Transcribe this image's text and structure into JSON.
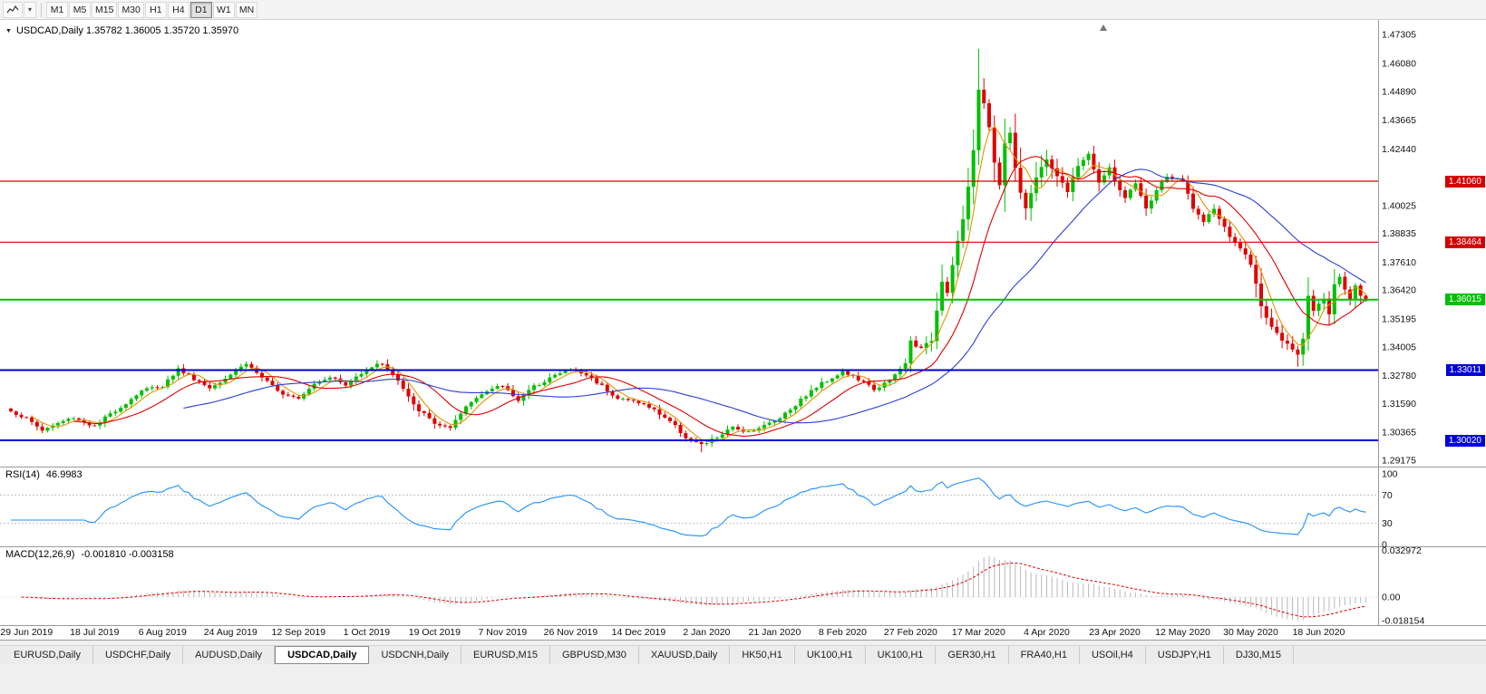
{
  "toolbar": {
    "timeframes": [
      "M1",
      "M5",
      "M15",
      "M30",
      "H1",
      "H4",
      "D1",
      "W1",
      "MN"
    ],
    "active_timeframe": "D1",
    "caret_glyph": "▾"
  },
  "chart": {
    "menu_arrow": "▼",
    "title_text": "USDCAD,Daily 1.35782 1.36005 1.35720 1.35970"
  },
  "rsi": {
    "title": "RSI(14)",
    "value": "46.9983"
  },
  "macd": {
    "title": "MACD(12,26,9)",
    "values": "-0.001810 -0.003158"
  },
  "tabs": {
    "items": [
      "EURUSD,Daily",
      "USDCHF,Daily",
      "AUDUSD,Daily",
      "USDCAD,Daily",
      "USDCNH,Daily",
      "EURUSD,M15",
      "GBPUSD,M30",
      "XAUUSD,Daily",
      "HK50,H1",
      "UK100,H1",
      "UK100,H1",
      "GER30,H1",
      "FRA40,H1",
      "USOil,H4",
      "USDJPY,H1",
      "DJ30,M15"
    ],
    "active_index": 3
  },
  "chart_data": {
    "type": "candlestick",
    "symbol": "USDCAD",
    "timeframe": "Daily",
    "last_bar": {
      "open": 1.35782,
      "high": 1.36005,
      "low": 1.3572,
      "close": 1.3597
    },
    "bar_count": 260,
    "price_range": [
      1.289,
      1.477
    ],
    "colors": {
      "up": "#00c000",
      "down": "#e00000"
    },
    "y_axis_labels": [
      1.47305,
      1.4608,
      1.4489,
      1.43665,
      1.4244,
      1.40025,
      1.38835,
      1.3761,
      1.3642,
      1.35195,
      1.34005,
      1.3278,
      1.3159,
      1.30365,
      1.29175
    ],
    "x_tick_labels": [
      "29 Jun 2019",
      "18 Jul 2019",
      "6 Aug 2019",
      "24 Aug 2019",
      "12 Sep 2019",
      "1 Oct 2019",
      "19 Oct 2019",
      "7 Nov 2019",
      "26 Nov 2019",
      "14 Dec 2019",
      "2 Jan 2020",
      "21 Jan 2020",
      "8 Feb 2020",
      "27 Feb 2020",
      "17 Mar 2020",
      "4 Apr 2020",
      "23 Apr 2020",
      "12 May 2020",
      "30 May 2020",
      "18 Jun 2020"
    ],
    "horizontal_levels": [
      {
        "value": 1.4106,
        "label": "1.41060",
        "color": "#d40000",
        "width": 1.2
      },
      {
        "value": 1.38464,
        "label": "1.38464",
        "color": "#d40000",
        "width": 1.2
      },
      {
        "value": 1.36015,
        "label": "1.36015",
        "color": "#00c000",
        "width": 2
      },
      {
        "value": 1.33011,
        "label": "1.33011",
        "color": "#0000dd",
        "width": 2
      },
      {
        "value": 1.3002,
        "label": "1.30020",
        "color": "#0000dd",
        "width": 2
      }
    ],
    "moving_averages": [
      {
        "period": 5,
        "color": "#e39400"
      },
      {
        "period": 13,
        "color": "#dd0000"
      },
      {
        "period": 34,
        "color": "#2b3fd6"
      }
    ],
    "rsi": {
      "period": 14,
      "current": 46.9983,
      "color": "#1e90ff",
      "levels": [
        70,
        30
      ],
      "axis": [
        {
          "v": 100,
          "label": "100"
        },
        {
          "v": 70,
          "label": "70"
        },
        {
          "v": 30,
          "label": "30"
        },
        {
          "v": 0,
          "label": "0"
        }
      ]
    },
    "macd": {
      "fast": 12,
      "slow": 26,
      "signal": 9,
      "current": -0.00181,
      "signal_current": -0.003158,
      "hist_color": "#b8b8b8",
      "signal_color": "#e00000",
      "axis": [
        {
          "v": 0.032972,
          "label": "0.032972"
        },
        {
          "v": 0,
          "label": "0.00"
        },
        {
          "v": -0.018154,
          "label": "-0.018154"
        }
      ]
    },
    "anchors": [
      [
        0,
        1.3125
      ],
      [
        3,
        1.3095
      ],
      [
        6,
        1.3045
      ],
      [
        9,
        1.3075
      ],
      [
        12,
        1.31
      ],
      [
        16,
        1.306
      ],
      [
        19,
        1.3115
      ],
      [
        22,
        1.316
      ],
      [
        25,
        1.3215
      ],
      [
        29,
        1.3235
      ],
      [
        32,
        1.3305
      ],
      [
        35,
        1.3265
      ],
      [
        38,
        1.3225
      ],
      [
        42,
        1.3285
      ],
      [
        45,
        1.333
      ],
      [
        48,
        1.327
      ],
      [
        51,
        1.321
      ],
      [
        55,
        1.3185
      ],
      [
        58,
        1.3245
      ],
      [
        61,
        1.3275
      ],
      [
        64,
        1.3235
      ],
      [
        68,
        1.331
      ],
      [
        71,
        1.333
      ],
      [
        74,
        1.3255
      ],
      [
        77,
        1.315
      ],
      [
        81,
        1.3075
      ],
      [
        84,
        1.305
      ],
      [
        87,
        1.3145
      ],
      [
        90,
        1.3205
      ],
      [
        94,
        1.3235
      ],
      [
        97,
        1.3175
      ],
      [
        100,
        1.323
      ],
      [
        103,
        1.327
      ],
      [
        107,
        1.3305
      ],
      [
        110,
        1.328
      ],
      [
        113,
        1.3235
      ],
      [
        116,
        1.318
      ],
      [
        120,
        1.3165
      ],
      [
        123,
        1.313
      ],
      [
        126,
        1.3085
      ],
      [
        129,
        1.3015
      ],
      [
        132,
        1.298
      ],
      [
        135,
        1.3015
      ],
      [
        138,
        1.3055
      ],
      [
        141,
        1.304
      ],
      [
        144,
        1.3065
      ],
      [
        146,
        1.3085
      ],
      [
        149,
        1.3135
      ],
      [
        152,
        1.3195
      ],
      [
        155,
        1.3245
      ],
      [
        159,
        1.3295
      ],
      [
        162,
        1.326
      ],
      [
        165,
        1.322
      ],
      [
        168,
        1.3255
      ],
      [
        171,
        1.333
      ],
      [
        172,
        1.3425
      ],
      [
        174,
        1.339
      ],
      [
        176,
        1.343
      ],
      [
        178,
        1.3685
      ],
      [
        179,
        1.363
      ],
      [
        180,
        1.3755
      ],
      [
        181,
        1.385
      ],
      [
        182,
        1.3945
      ],
      [
        183,
        1.4075
      ],
      [
        184,
        1.424
      ],
      [
        185,
        1.4495
      ],
      [
        186,
        1.4445
      ],
      [
        187,
        1.433
      ],
      [
        188,
        1.419
      ],
      [
        189,
        1.409
      ],
      [
        190,
        1.427
      ],
      [
        191,
        1.431
      ],
      [
        192,
        1.417
      ],
      [
        193,
        1.406
      ],
      [
        194,
        1.3995
      ],
      [
        196,
        1.412
      ],
      [
        198,
        1.42
      ],
      [
        200,
        1.413
      ],
      [
        202,
        1.406
      ],
      [
        204,
        1.4175
      ],
      [
        206,
        1.422
      ],
      [
        208,
        1.41
      ],
      [
        210,
        1.416
      ],
      [
        211,
        1.411
      ],
      [
        213,
        1.403
      ],
      [
        215,
        1.4095
      ],
      [
        217,
        1.3985
      ],
      [
        219,
        1.407
      ],
      [
        221,
        1.4125
      ],
      [
        224,
        1.4105
      ],
      [
        226,
        1.3995
      ],
      [
        228,
        1.393
      ],
      [
        230,
        1.399
      ],
      [
        232,
        1.3905
      ],
      [
        234,
        1.384
      ],
      [
        236,
        1.3795
      ],
      [
        237,
        1.375
      ],
      [
        239,
        1.358
      ],
      [
        241,
        1.348
      ],
      [
        243,
        1.3425
      ],
      [
        245,
        1.339
      ],
      [
        246,
        1.336
      ],
      [
        247,
        1.344
      ],
      [
        248,
        1.362
      ],
      [
        249,
        1.356
      ],
      [
        250,
        1.3585
      ],
      [
        251,
        1.3605
      ],
      [
        252,
        1.354
      ],
      [
        253,
        1.366
      ],
      [
        254,
        1.37
      ],
      [
        255,
        1.364
      ],
      [
        256,
        1.36
      ],
      [
        257,
        1.3665
      ],
      [
        258,
        1.362
      ],
      [
        259,
        1.3597
      ]
    ],
    "wick_overrides": [
      {
        "i": 185,
        "high": 1.467
      },
      {
        "i": 132,
        "low": 1.2951
      },
      {
        "i": 246,
        "low": 1.3315
      }
    ]
  }
}
